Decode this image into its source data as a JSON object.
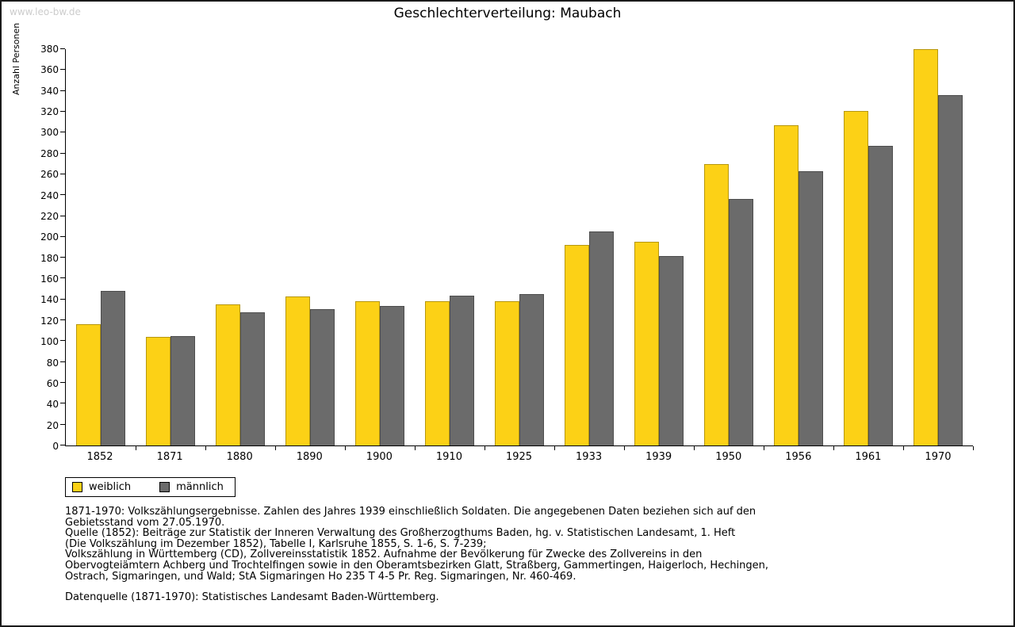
{
  "watermark": "www.leo-bw.de",
  "title": "Geschlechterverteilung: Maubach",
  "chart_data": {
    "type": "bar",
    "title": "Geschlechterverteilung: Maubach",
    "xlabel": "",
    "ylabel": "Anzahl Personen",
    "ylim": [
      0,
      380
    ],
    "ytick_step": 20,
    "grid": false,
    "legend_position": "bottom-left",
    "categories": [
      "1852",
      "1871",
      "1880",
      "1890",
      "1900",
      "1910",
      "1925",
      "1933",
      "1939",
      "1950",
      "1956",
      "1961",
      "1970"
    ],
    "series": [
      {
        "name": "weiblich",
        "color": "#FCD116",
        "values": [
          116,
          104,
          135,
          143,
          138,
          138,
          138,
          192,
          195,
          270,
          307,
          321,
          380
        ]
      },
      {
        "name": "männlich",
        "color": "#6B6B6B",
        "values": [
          148,
          105,
          128,
          131,
          134,
          144,
          145,
          205,
          182,
          236,
          263,
          287,
          336
        ]
      }
    ]
  },
  "legend": {
    "items": [
      {
        "label": "weiblich",
        "color": "#FCD116"
      },
      {
        "label": "männlich",
        "color": "#6B6B6B"
      }
    ]
  },
  "notes": {
    "text": "1871-1970: Volkszählungsergebnisse. Zahlen des Jahres 1939 einschließlich Soldaten. Die angegebenen Daten beziehen sich auf den\nGebietsstand vom 27.05.1970.\nQuelle (1852): Beiträge zur Statistik der Inneren Verwaltung des Großherzogthums Baden, hg. v. Statistischen Landesamt, 1. Heft\n(Die Volkszählung im Dezember 1852), Tabelle I, Karlsruhe 1855, S. 1-6, S. 7-239;\nVolkszählung in Württemberg (CD), Zollvereinsstatistik 1852. Aufnahme der Bevölkerung für Zwecke des Zollvereins in den\nObervogteiämtern Achberg und Trochtelfingen sowie in den Oberamtsbezirken Glatt, Straßberg, Gammertingen, Haigerloch, Hechingen,\nOstrach, Sigmaringen, und Wald; StA Sigmaringen Ho 235 T 4-5 Pr. Reg. Sigmaringen, Nr. 460-469.",
    "source": "Datenquelle (1871-1970): Statistisches Landesamt Baden-Württemberg."
  }
}
